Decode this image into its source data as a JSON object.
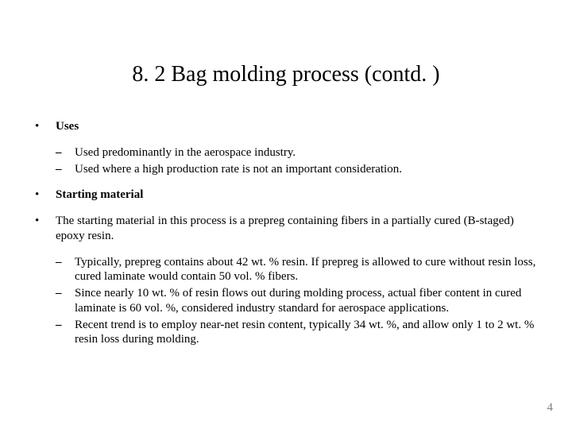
{
  "title": "8. 2 Bag molding process (contd. )",
  "sections": [
    {
      "type": "l1",
      "bold": true,
      "text": "Uses"
    },
    {
      "type": "l2group",
      "items": [
        "Used predominantly in the aerospace industry.",
        "Used where a high production rate is not an important consideration."
      ]
    },
    {
      "type": "l1",
      "bold": true,
      "text": "Starting material"
    },
    {
      "type": "l1",
      "bold": false,
      "text": "The starting material in this process is a prepreg containing fibers in a partially cured (B-staged) epoxy resin."
    },
    {
      "type": "l2group",
      "items": [
        "Typically, prepreg contains about 42 wt. % resin. If prepreg is allowed to cure without resin loss, cured laminate would contain 50 vol. % fibers.",
        "Since nearly 10 wt. % of resin flows out during molding process, actual fiber content in cured laminate is 60 vol. %, considered industry standard for aerospace applications.",
        "Recent trend is to employ near-net resin content, typically 34 wt. %, and allow only 1 to 2 wt. % resin loss during molding."
      ]
    }
  ],
  "page_number": "4",
  "colors": {
    "background": "#ffffff",
    "text": "#000000",
    "page_number": "#7f7f7f"
  },
  "fonts": {
    "family": "Times New Roman",
    "title_size_pt": 28,
    "body_size_pt": 15
  }
}
